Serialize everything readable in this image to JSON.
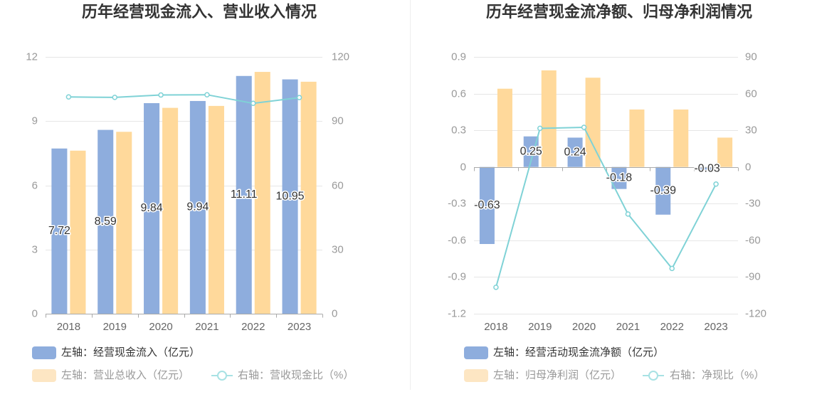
{
  "chart_data": [
    {
      "type": "bar",
      "title": "历年经营现金流入、营业收入情况",
      "categories": [
        "2018",
        "2019",
        "2020",
        "2021",
        "2022",
        "2023"
      ],
      "y_left": {
        "ticks": [
          12,
          9,
          6,
          3,
          0
        ],
        "ylim": [
          0,
          12
        ]
      },
      "y_right": {
        "ticks": [
          120,
          90,
          60,
          30,
          0
        ],
        "ylim": [
          0,
          120
        ]
      },
      "series": [
        {
          "name": "左轴：经营现金流入（亿元）",
          "type": "bar",
          "axis": "left",
          "color": "#8eaddd",
          "legend_color": "#8eaddd",
          "data_labels": true,
          "values": [
            7.72,
            8.59,
            9.84,
            9.94,
            11.11,
            10.95
          ]
        },
        {
          "name": "左轴：营业总收入（亿元）",
          "type": "bar",
          "axis": "left",
          "color": "#ffd99b",
          "legend_color": "#fde6c3",
          "data_labels": false,
          "values": [
            7.62,
            8.5,
            9.62,
            9.71,
            11.3,
            10.84
          ]
        },
        {
          "name": "右轴：营收现金比（%）",
          "type": "line",
          "axis": "right",
          "color": "#7fd2d6",
          "legend_color": "#a8e2e4",
          "data_labels": false,
          "values": [
            101.3,
            101.1,
            102.2,
            102.3,
            98.3,
            101.0
          ]
        }
      ],
      "grid": true,
      "legend": "bottom-left"
    },
    {
      "type": "bar",
      "title": "历年经营现金流净额、归母净利润情况",
      "categories": [
        "2018",
        "2019",
        "2020",
        "2021",
        "2022",
        "2023"
      ],
      "y_left": {
        "ticks": [
          0.9,
          0.6,
          0.3,
          0,
          -0.3,
          -0.6,
          -0.9,
          -1.2
        ],
        "ylim": [
          -1.2,
          0.9
        ]
      },
      "y_right": {
        "ticks": [
          90,
          60,
          30,
          0,
          -30,
          -60,
          -90,
          -120
        ],
        "ylim": [
          -120,
          90
        ]
      },
      "series": [
        {
          "name": "左轴：经营活动现金流净额（亿元）",
          "type": "bar",
          "axis": "left",
          "color": "#8eaddd",
          "legend_color": "#8eaddd",
          "data_labels": true,
          "values": [
            -0.63,
            0.25,
            0.24,
            -0.18,
            -0.39,
            -0.03
          ]
        },
        {
          "name": "左轴：归母净利润（亿元）",
          "type": "bar",
          "axis": "left",
          "color": "#ffd99b",
          "legend_color": "#fde6c3",
          "data_labels": false,
          "values": [
            0.64,
            0.79,
            0.73,
            0.47,
            0.47,
            0.24
          ]
        },
        {
          "name": "右轴：净现比（%）",
          "type": "line",
          "axis": "right",
          "color": "#7fd2d6",
          "legend_color": "#a8e2e4",
          "data_labels": false,
          "values": [
            -98.4,
            31.6,
            32.4,
            -38.5,
            -83.0,
            -14.0
          ]
        }
      ],
      "grid": true,
      "legend": "bottom-left"
    }
  ]
}
